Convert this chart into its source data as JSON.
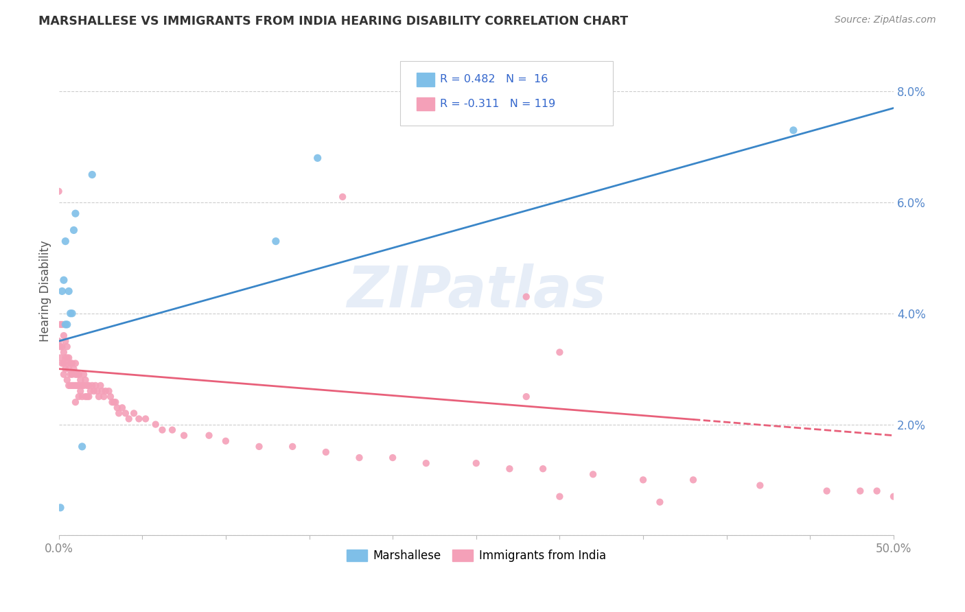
{
  "title": "MARSHALLESE VS IMMIGRANTS FROM INDIA HEARING DISABILITY CORRELATION CHART",
  "source": "Source: ZipAtlas.com",
  "ylabel": "Hearing Disability",
  "xlim": [
    0.0,
    0.5
  ],
  "ylim": [
    0.0,
    0.088
  ],
  "xtick_labels": [
    "0.0%",
    "50.0%"
  ],
  "xtick_pos": [
    0.0,
    0.5
  ],
  "yticks": [
    0.0,
    0.02,
    0.04,
    0.06,
    0.08
  ],
  "ytick_labels": [
    "",
    "2.0%",
    "4.0%",
    "6.0%",
    "8.0%"
  ],
  "watermark": "ZIPatlas",
  "marshallese_color": "#7fbfe8",
  "india_color": "#f4a0b8",
  "marshallese_line_color": "#3a86c8",
  "india_line_color": "#e8607a",
  "marshallese_line_x": [
    0.0,
    0.5
  ],
  "marshallese_line_y": [
    0.035,
    0.077
  ],
  "india_line_x": [
    0.0,
    0.5
  ],
  "india_line_y": [
    0.03,
    0.018
  ],
  "india_line_dash_start": 0.38,
  "marshallese_x": [
    0.001,
    0.002,
    0.003,
    0.004,
    0.004,
    0.005,
    0.006,
    0.007,
    0.008,
    0.009,
    0.01,
    0.014,
    0.02,
    0.13,
    0.155,
    0.44
  ],
  "marshallese_y": [
    0.005,
    0.044,
    0.046,
    0.038,
    0.053,
    0.038,
    0.044,
    0.04,
    0.04,
    0.055,
    0.058,
    0.016,
    0.065,
    0.053,
    0.068,
    0.073
  ],
  "india_x": [
    0.001,
    0.001,
    0.001,
    0.002,
    0.002,
    0.002,
    0.003,
    0.003,
    0.003,
    0.003,
    0.004,
    0.004,
    0.004,
    0.005,
    0.005,
    0.005,
    0.005,
    0.006,
    0.006,
    0.006,
    0.007,
    0.007,
    0.007,
    0.008,
    0.008,
    0.008,
    0.009,
    0.009,
    0.01,
    0.01,
    0.01,
    0.01,
    0.011,
    0.011,
    0.012,
    0.012,
    0.012,
    0.013,
    0.013,
    0.014,
    0.014,
    0.015,
    0.015,
    0.016,
    0.016,
    0.017,
    0.017,
    0.018,
    0.018,
    0.019,
    0.02,
    0.021,
    0.022,
    0.023,
    0.024,
    0.025,
    0.026,
    0.027,
    0.028,
    0.03,
    0.031,
    0.032,
    0.033,
    0.034,
    0.035,
    0.036,
    0.038,
    0.04,
    0.042,
    0.045,
    0.048,
    0.052,
    0.058,
    0.062,
    0.068,
    0.075,
    0.09,
    0.1,
    0.12,
    0.14,
    0.16,
    0.18,
    0.2,
    0.22,
    0.25,
    0.27,
    0.29,
    0.32,
    0.35,
    0.38,
    0.42,
    0.46,
    0.48,
    0.49,
    0.5
  ],
  "india_y": [
    0.038,
    0.034,
    0.032,
    0.038,
    0.034,
    0.031,
    0.036,
    0.033,
    0.031,
    0.029,
    0.035,
    0.032,
    0.03,
    0.034,
    0.032,
    0.031,
    0.028,
    0.032,
    0.03,
    0.027,
    0.031,
    0.029,
    0.027,
    0.031,
    0.029,
    0.027,
    0.03,
    0.027,
    0.031,
    0.029,
    0.027,
    0.024,
    0.029,
    0.027,
    0.029,
    0.027,
    0.025,
    0.028,
    0.026,
    0.027,
    0.025,
    0.029,
    0.027,
    0.028,
    0.025,
    0.027,
    0.025,
    0.027,
    0.025,
    0.026,
    0.027,
    0.026,
    0.027,
    0.026,
    0.025,
    0.027,
    0.026,
    0.025,
    0.026,
    0.026,
    0.025,
    0.024,
    0.024,
    0.024,
    0.023,
    0.022,
    0.023,
    0.022,
    0.021,
    0.022,
    0.021,
    0.021,
    0.02,
    0.019,
    0.019,
    0.018,
    0.018,
    0.017,
    0.016,
    0.016,
    0.015,
    0.014,
    0.014,
    0.013,
    0.013,
    0.012,
    0.012,
    0.011,
    0.01,
    0.01,
    0.009,
    0.008,
    0.008,
    0.008,
    0.007
  ],
  "india_x_outliers": [
    0.0,
    0.0,
    0.17,
    0.28,
    0.3,
    0.36,
    0.28,
    0.3
  ],
  "india_y_outliers": [
    0.062,
    0.035,
    0.061,
    0.043,
    0.007,
    0.006,
    0.025,
    0.033
  ],
  "background_color": "#ffffff",
  "grid_color": "#cccccc",
  "grid_style": "--",
  "title_color": "#333333",
  "source_color": "#888888",
  "ylabel_color": "#555555",
  "tick_color": "#5588cc",
  "xtick_color": "#888888",
  "legend_box_color": "#eeeeee",
  "legend_text_color": "#3366cc",
  "legend_r1": "R = 0.482",
  "legend_n1": "N =  16",
  "legend_r2": "R = -0.311",
  "legend_n2": "N = 119"
}
